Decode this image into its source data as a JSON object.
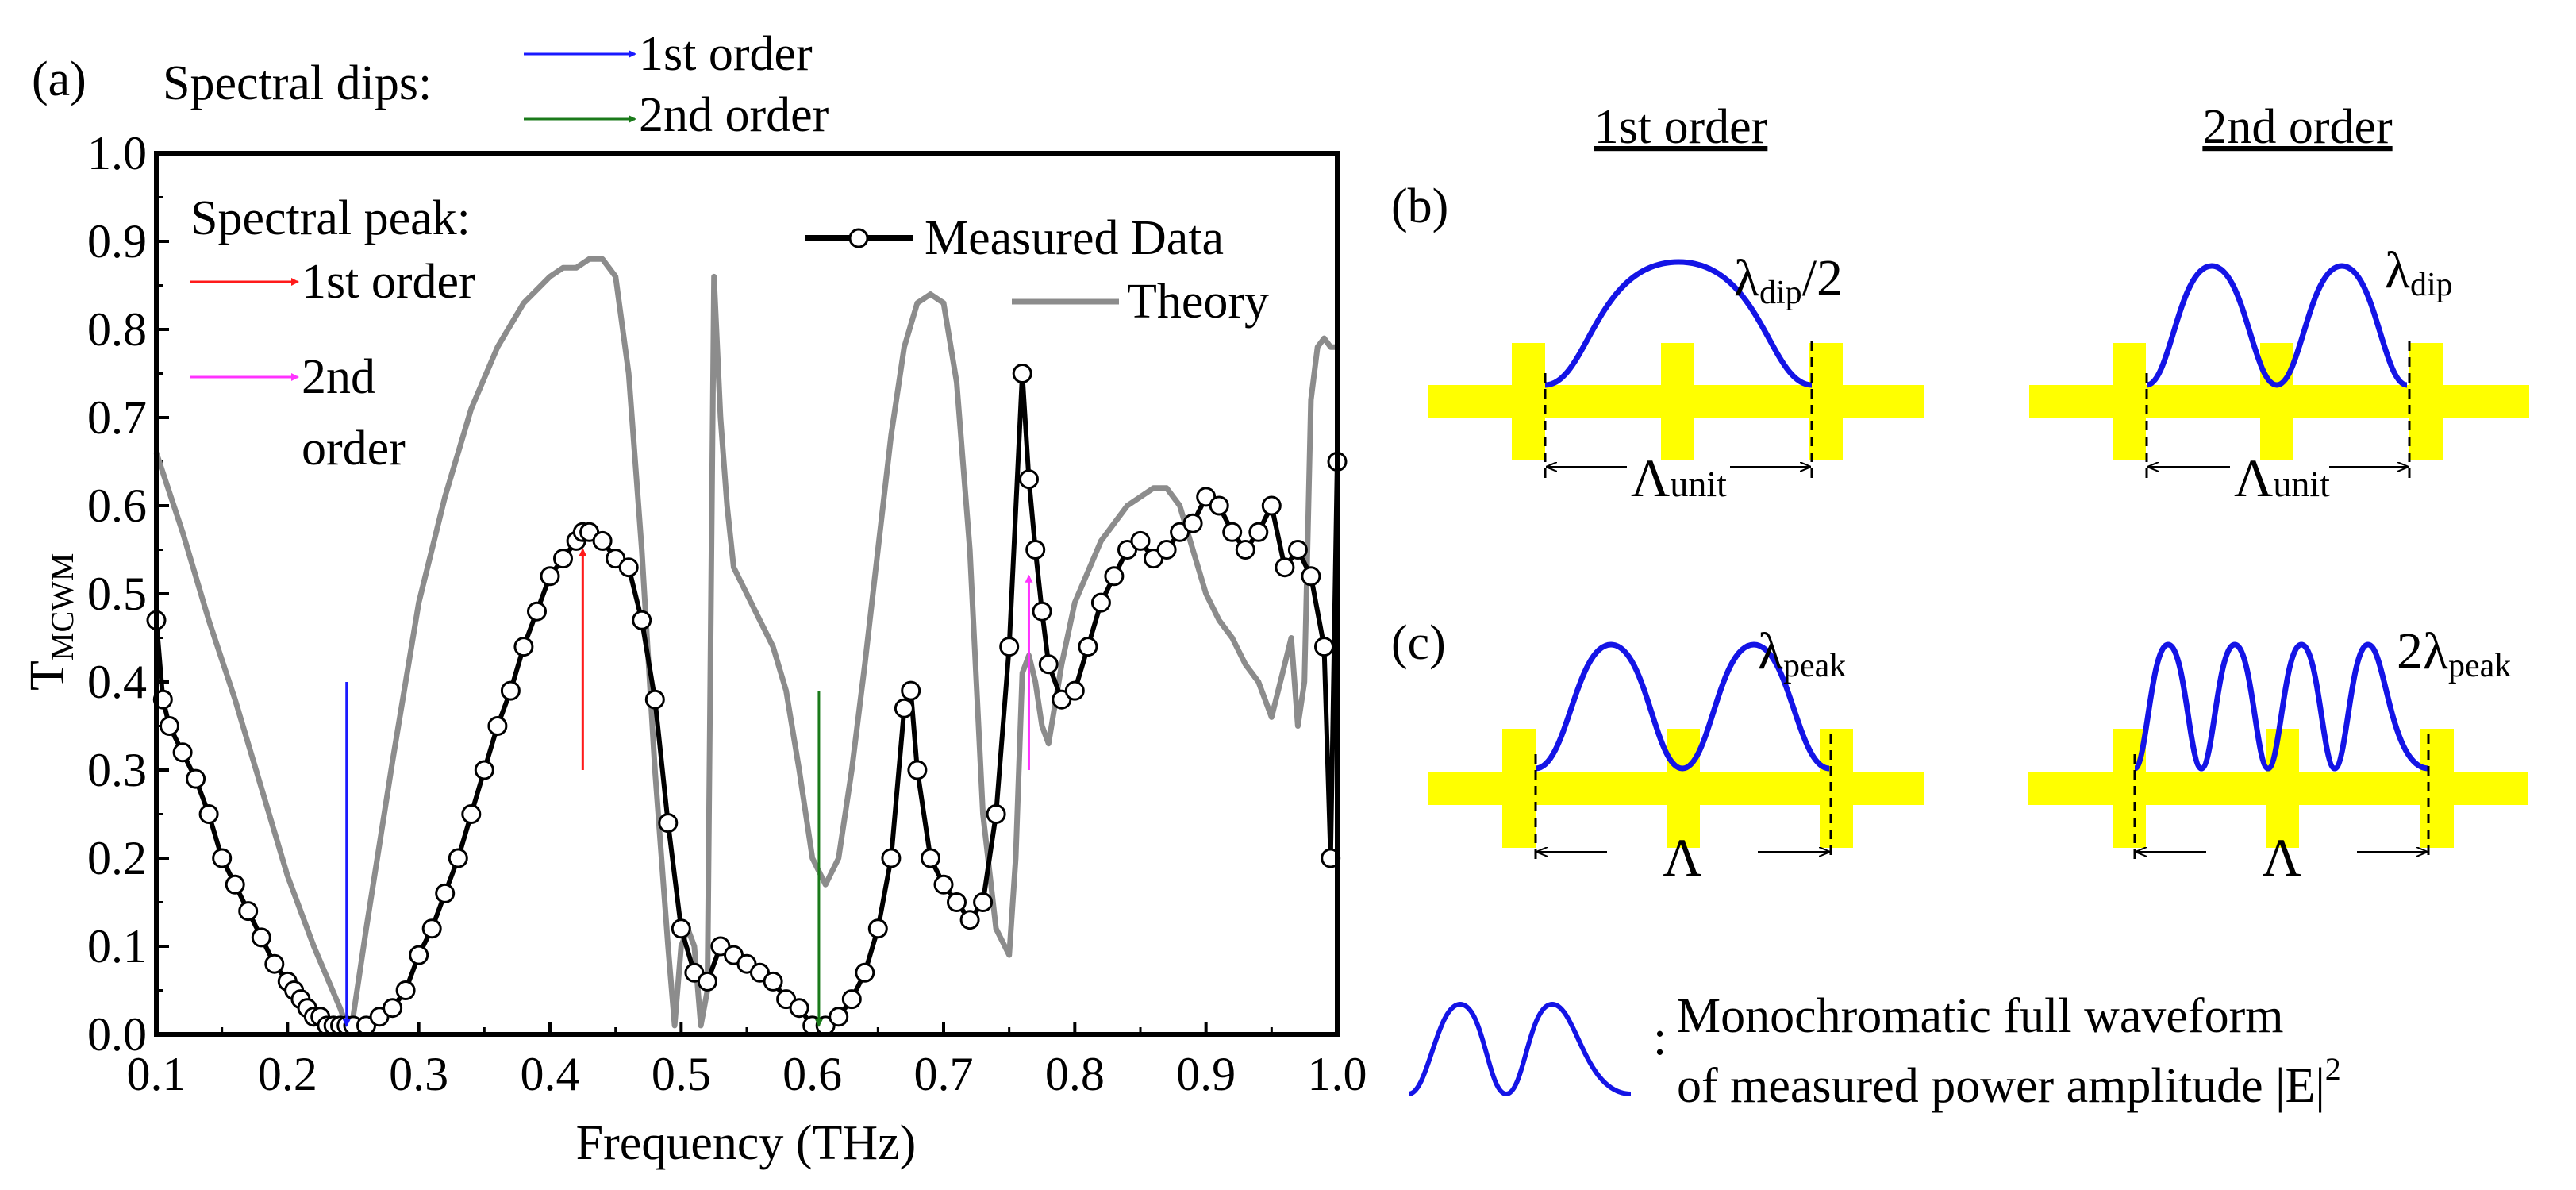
{
  "chart_data": {
    "type": "line",
    "panel_label": "(a)",
    "xlabel": "Frequency (THz)",
    "ylabel": "T",
    "ylabel_sub": "MCWM",
    "xlim": [
      0.1,
      1.0
    ],
    "ylim": [
      0.0,
      1.0
    ],
    "x_ticks": [
      "0.1",
      "0.2",
      "0.3",
      "0.4",
      "0.5",
      "0.6",
      "0.7",
      "0.8",
      "0.9",
      "1.0"
    ],
    "y_ticks": [
      "0.0",
      "0.1",
      "0.2",
      "0.3",
      "0.4",
      "0.5",
      "0.6",
      "0.7",
      "0.8",
      "0.9",
      "1.0"
    ],
    "legend": {
      "measured": "Measured Data",
      "theory": "Theory"
    },
    "series": [
      {
        "name": "Measured Data",
        "x": [
          0.1,
          0.105,
          0.11,
          0.12,
          0.13,
          0.14,
          0.15,
          0.16,
          0.17,
          0.18,
          0.19,
          0.2,
          0.205,
          0.21,
          0.215,
          0.22,
          0.225,
          0.23,
          0.235,
          0.24,
          0.245,
          0.25,
          0.26,
          0.27,
          0.28,
          0.29,
          0.3,
          0.31,
          0.32,
          0.33,
          0.34,
          0.35,
          0.36,
          0.37,
          0.38,
          0.39,
          0.4,
          0.41,
          0.42,
          0.425,
          0.43,
          0.44,
          0.45,
          0.46,
          0.47,
          0.48,
          0.49,
          0.5,
          0.51,
          0.52,
          0.53,
          0.54,
          0.55,
          0.56,
          0.57,
          0.58,
          0.59,
          0.6,
          0.61,
          0.62,
          0.63,
          0.64,
          0.65,
          0.66,
          0.67,
          0.675,
          0.68,
          0.69,
          0.7,
          0.71,
          0.72,
          0.73,
          0.74,
          0.75,
          0.76,
          0.765,
          0.77,
          0.775,
          0.78,
          0.79,
          0.8,
          0.81,
          0.82,
          0.83,
          0.84,
          0.85,
          0.86,
          0.87,
          0.88,
          0.89,
          0.9,
          0.91,
          0.92,
          0.93,
          0.94,
          0.95,
          0.96,
          0.97,
          0.98,
          0.99,
          0.995,
          1.0
        ],
        "y": [
          0.47,
          0.38,
          0.35,
          0.32,
          0.29,
          0.25,
          0.2,
          0.17,
          0.14,
          0.11,
          0.08,
          0.06,
          0.05,
          0.04,
          0.03,
          0.02,
          0.02,
          0.01,
          0.01,
          0.01,
          0.01,
          0.01,
          0.01,
          0.02,
          0.03,
          0.05,
          0.09,
          0.12,
          0.16,
          0.2,
          0.25,
          0.3,
          0.35,
          0.39,
          0.44,
          0.48,
          0.52,
          0.54,
          0.56,
          0.57,
          0.57,
          0.56,
          0.54,
          0.53,
          0.47,
          0.38,
          0.24,
          0.12,
          0.07,
          0.06,
          0.1,
          0.09,
          0.08,
          0.07,
          0.06,
          0.04,
          0.03,
          0.01,
          0.01,
          0.02,
          0.04,
          0.07,
          0.12,
          0.2,
          0.37,
          0.39,
          0.3,
          0.2,
          0.17,
          0.15,
          0.13,
          0.15,
          0.25,
          0.44,
          0.75,
          0.63,
          0.55,
          0.48,
          0.42,
          0.38,
          0.39,
          0.44,
          0.49,
          0.52,
          0.55,
          0.56,
          0.54,
          0.55,
          0.57,
          0.58,
          0.61,
          0.6,
          0.57,
          0.55,
          0.57,
          0.6,
          0.53,
          0.55,
          0.52,
          0.44,
          0.2,
          0.65
        ]
      },
      {
        "name": "Theory",
        "x": [
          0.1,
          0.12,
          0.14,
          0.16,
          0.18,
          0.2,
          0.22,
          0.24,
          0.245,
          0.25,
          0.26,
          0.28,
          0.3,
          0.32,
          0.34,
          0.36,
          0.38,
          0.4,
          0.41,
          0.42,
          0.43,
          0.44,
          0.45,
          0.46,
          0.47,
          0.48,
          0.49,
          0.495,
          0.5,
          0.505,
          0.51,
          0.515,
          0.52,
          0.525,
          0.53,
          0.535,
          0.54,
          0.55,
          0.56,
          0.57,
          0.58,
          0.59,
          0.6,
          0.61,
          0.62,
          0.63,
          0.64,
          0.65,
          0.66,
          0.67,
          0.68,
          0.69,
          0.7,
          0.71,
          0.72,
          0.725,
          0.73,
          0.74,
          0.75,
          0.755,
          0.76,
          0.765,
          0.77,
          0.775,
          0.78,
          0.79,
          0.8,
          0.82,
          0.84,
          0.86,
          0.87,
          0.88,
          0.89,
          0.9,
          0.91,
          0.92,
          0.93,
          0.94,
          0.95,
          0.96,
          0.965,
          0.97,
          0.975,
          0.98,
          0.985,
          0.99,
          0.995,
          1.0
        ],
        "y": [
          0.66,
          0.57,
          0.47,
          0.38,
          0.28,
          0.18,
          0.1,
          0.03,
          0.01,
          0.02,
          0.12,
          0.31,
          0.49,
          0.61,
          0.71,
          0.78,
          0.83,
          0.86,
          0.87,
          0.87,
          0.88,
          0.88,
          0.86,
          0.75,
          0.55,
          0.3,
          0.1,
          0.01,
          0.1,
          0.12,
          0.1,
          0.01,
          0.05,
          0.86,
          0.7,
          0.6,
          0.53,
          0.5,
          0.47,
          0.44,
          0.39,
          0.3,
          0.2,
          0.17,
          0.2,
          0.3,
          0.42,
          0.55,
          0.68,
          0.78,
          0.83,
          0.84,
          0.83,
          0.74,
          0.55,
          0.4,
          0.25,
          0.12,
          0.09,
          0.2,
          0.41,
          0.43,
          0.4,
          0.35,
          0.33,
          0.42,
          0.49,
          0.56,
          0.6,
          0.62,
          0.62,
          0.6,
          0.55,
          0.5,
          0.47,
          0.45,
          0.42,
          0.4,
          0.36,
          0.42,
          0.45,
          0.35,
          0.4,
          0.72,
          0.78,
          0.79,
          0.78,
          0.78
        ]
      }
    ],
    "annotations": {
      "dips_label": "Spectral dips:",
      "dips_first": "1st order",
      "dips_second": "2nd order",
      "peak_label": "Spectral peak:",
      "peak_first": "1st order",
      "peak_second_a": "2nd",
      "peak_second_b": "order"
    },
    "arrows": [
      {
        "kind": "dip",
        "order": 1,
        "x": 0.245,
        "y_from": 0.4,
        "y_to": 0.01
      },
      {
        "kind": "dip",
        "order": 2,
        "x": 0.605,
        "y_from": 0.39,
        "y_to": 0.01
      },
      {
        "kind": "peak",
        "order": 1,
        "x": 0.425,
        "y_from": 0.3,
        "y_to": 0.55
      },
      {
        "kind": "peak",
        "order": 2,
        "x": 0.765,
        "y_from": 0.3,
        "y_to": 0.52
      }
    ]
  },
  "colors": {
    "dip_first": "#1a1aff",
    "dip_second": "#1a7a1a",
    "peak_first": "#ff1a1a",
    "peak_second": "#ff33ff",
    "measured_line": "#000000",
    "theory_line": "#8c8c8c",
    "wave": "#1414e6",
    "bar": "#ffff00"
  },
  "diagram": {
    "col_first": "1st order",
    "col_second": "2nd order",
    "label_b": "(b)",
    "label_c": "(c)",
    "b_first_lambda": "λ",
    "b_first_sub": "dip",
    "b_first_tail": "/2",
    "b_second_lambda": "λ",
    "b_second_sub": "dip",
    "unit_symbol": "Λ",
    "unit_sub": "unit",
    "c_first_lambda": "λ",
    "c_first_sub": "peak",
    "c_second_prefix": "2λ",
    "c_second_sub": "peak",
    "period_symbol": "Λ",
    "legend_colon": ":",
    "legend_line1": "Monochromatic full waveform",
    "legend_line2": "of measured power amplitude |E|",
    "legend_sup": "2"
  }
}
